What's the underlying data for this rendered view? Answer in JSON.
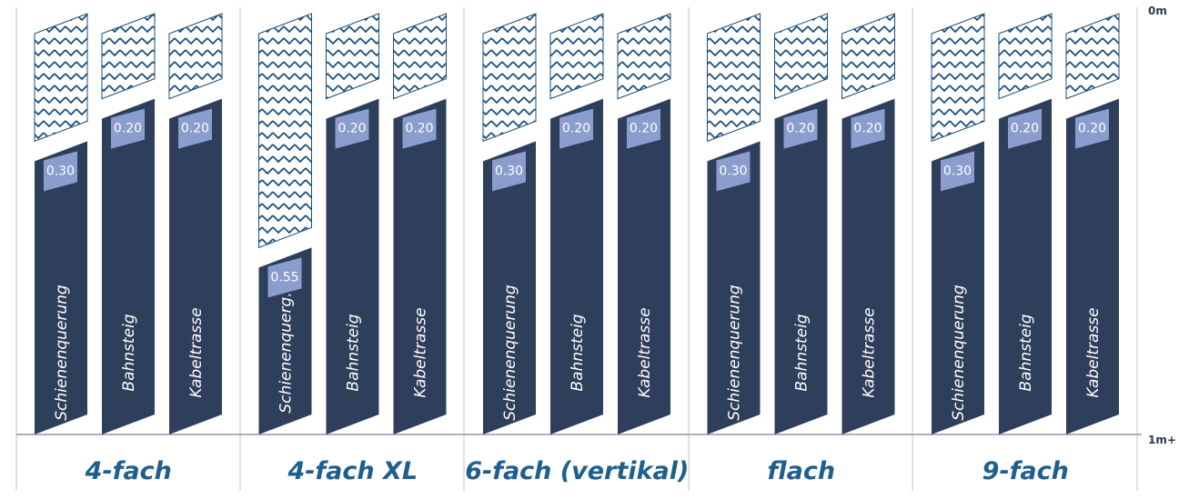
{
  "chart_data": {
    "type": "bar",
    "ylim": [
      0,
      1
    ],
    "y_ticks": [
      {
        "value": 0,
        "label": "0m"
      },
      {
        "value": 1,
        "label": "1m+"
      }
    ],
    "colors": {
      "bar": "#2e3f5c",
      "badge": "#8a9dcc",
      "hatch": "#1c4f7c",
      "title": "#1f5f8d",
      "divider": "#d9d9d9"
    },
    "groups": [
      {
        "title": "4-fach",
        "bars": [
          {
            "label": "Schienenquerung",
            "value": 0.3,
            "value_label": "0.30"
          },
          {
            "label": "Bahnsteig",
            "value": 0.2,
            "value_label": "0.20"
          },
          {
            "label": "Kabeltrasse",
            "value": 0.2,
            "value_label": "0.20"
          }
        ]
      },
      {
        "title": "4-fach XL",
        "bars": [
          {
            "label": "Schienenquerg.",
            "value": 0.55,
            "value_label": "0.55"
          },
          {
            "label": "Bahnsteig",
            "value": 0.2,
            "value_label": "0.20"
          },
          {
            "label": "Kabeltrasse",
            "value": 0.2,
            "value_label": "0.20"
          }
        ]
      },
      {
        "title": "6-fach (vertikal)",
        "bars": [
          {
            "label": "Schienenquerung",
            "value": 0.3,
            "value_label": "0.30"
          },
          {
            "label": "Bahnsteig",
            "value": 0.2,
            "value_label": "0.20"
          },
          {
            "label": "Kabeltrasse",
            "value": 0.2,
            "value_label": "0.20"
          }
        ]
      },
      {
        "title": "flach",
        "bars": [
          {
            "label": "Schienenquerung",
            "value": 0.3,
            "value_label": "0.30"
          },
          {
            "label": "Bahnsteig",
            "value": 0.2,
            "value_label": "0.20"
          },
          {
            "label": "Kabeltrasse",
            "value": 0.2,
            "value_label": "0.20"
          }
        ]
      },
      {
        "title": "9-fach",
        "bars": [
          {
            "label": "Schienenquerung",
            "value": 0.3,
            "value_label": "0.30"
          },
          {
            "label": "Bahnsteig",
            "value": 0.2,
            "value_label": "0.20"
          },
          {
            "label": "Kabeltrasse",
            "value": 0.2,
            "value_label": "0.20"
          }
        ]
      }
    ]
  }
}
